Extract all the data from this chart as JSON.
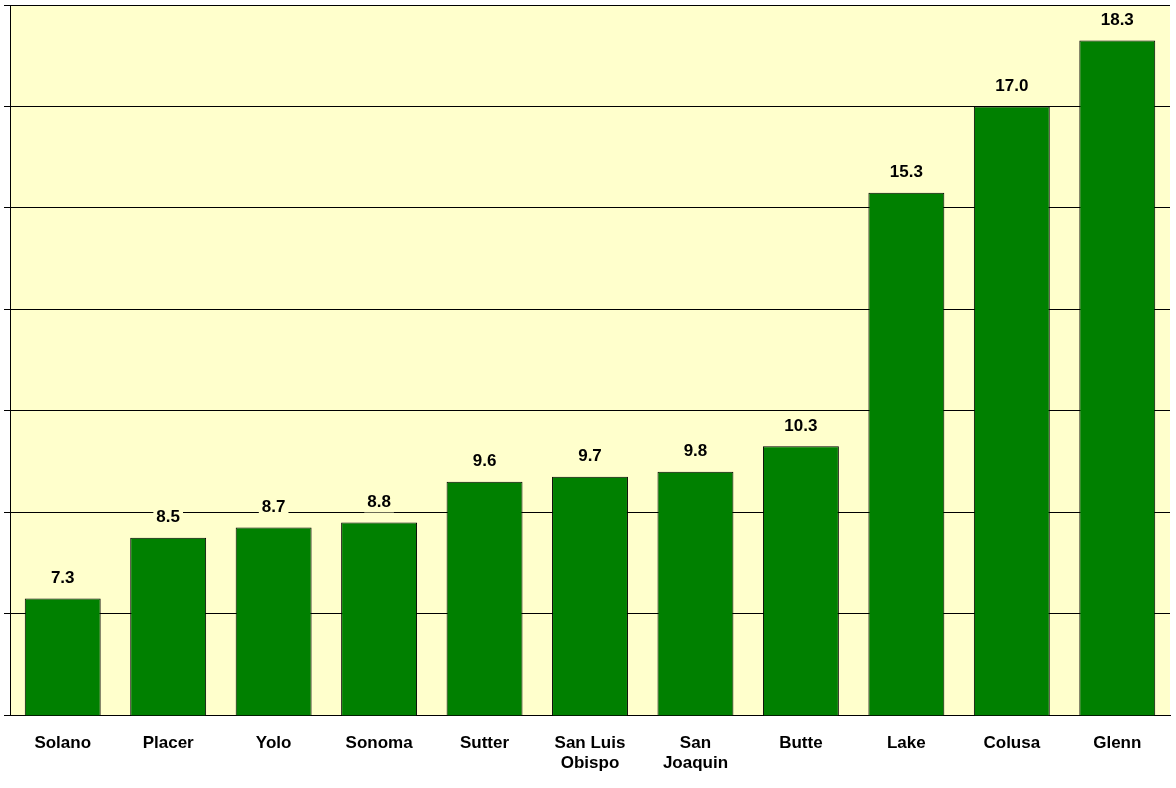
{
  "chart_data": {
    "type": "bar",
    "categories": [
      "Solano",
      "Placer",
      "Yolo",
      "Sonoma",
      "Sutter",
      "San Luis Obispo",
      "San Joaquin",
      "Butte",
      "Lake",
      "Colusa",
      "Glenn"
    ],
    "values": [
      7.3,
      8.5,
      8.7,
      8.8,
      9.6,
      9.7,
      9.8,
      10.3,
      15.3,
      17.0,
      18.3
    ],
    "value_labels": [
      "7.3",
      "8.5",
      "8.7",
      "8.8",
      "9.6",
      "9.7",
      "9.8",
      "10.3",
      "15.3",
      "17.0",
      "18.3"
    ],
    "color": "#008000",
    "ylim": [
      5,
      19
    ],
    "yticks": [
      {
        "value": 5,
        "label": null
      },
      {
        "value": 7,
        "label": null
      },
      {
        "value": 9,
        "label": null
      },
      {
        "value": 11,
        "label": null
      },
      {
        "value": 13,
        "label": null
      },
      {
        "value": 15,
        "label": null
      },
      {
        "value": 17,
        "label": null
      },
      {
        "value": 19,
        "label": null
      }
    ],
    "grid": "y",
    "tick_labels": "x"
  }
}
